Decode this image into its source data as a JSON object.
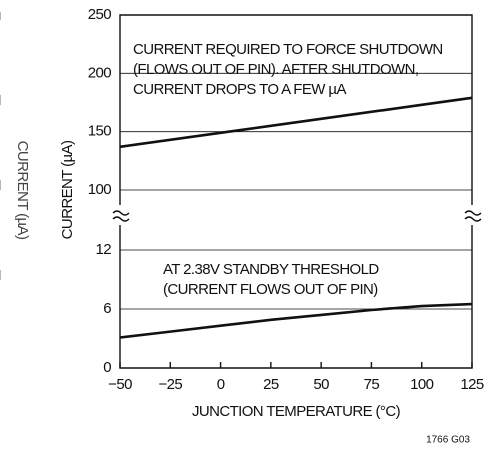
{
  "figure": {
    "y_label": "CURRENT (µA)",
    "x_label": "JUNCTION TEMPERATURE (°C)",
    "note": "1766 G03",
    "xlim": [
      -50,
      125
    ],
    "xticks": [
      {
        "value": -50,
        "label": "−50"
      },
      {
        "value": -25,
        "label": "−25"
      },
      0,
      25,
      50,
      75,
      100,
      125
    ]
  },
  "chart_data": [
    {
      "type": "line",
      "ylim": [
        100,
        250
      ],
      "yticks": [
        100,
        150,
        200,
        250
      ],
      "grid": true,
      "annotation": [
        "CURRENT REQUIRED TO FORCE SHUTDOWN",
        "(FLOWS OUT OF PIN). AFTER SHUTDOWN,",
        "CURRENT DROPS TO A FEW µA"
      ],
      "x": [
        -50,
        0,
        50,
        100,
        125
      ],
      "series": [
        {
          "name": null,
          "color": "#111111",
          "values": [
            137,
            149,
            161,
            173,
            179
          ]
        }
      ]
    },
    {
      "type": "line",
      "ylim": [
        0,
        12
      ],
      "yticks": [
        0,
        6,
        12
      ],
      "grid": true,
      "annotation": [
        "AT 2.38V STANDBY THRESHOLD",
        "(CURRENT FLOWS OUT OF PIN)"
      ],
      "x": [
        -50,
        -25,
        0,
        25,
        50,
        75,
        100,
        125
      ],
      "series": [
        {
          "name": null,
          "color": "#111111",
          "values": [
            3.1,
            3.7,
            4.3,
            4.9,
            5.4,
            5.9,
            6.3,
            6.5
          ]
        }
      ]
    }
  ]
}
